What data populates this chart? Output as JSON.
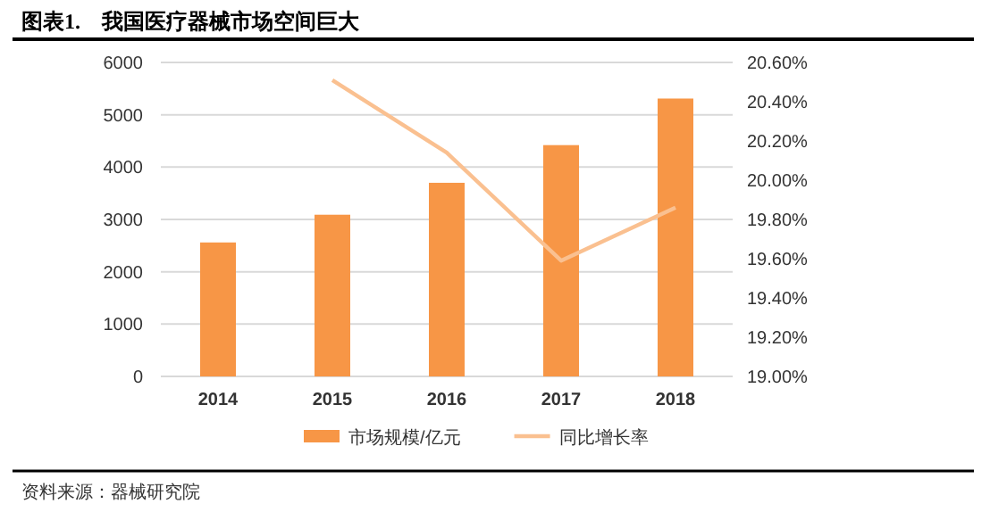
{
  "chart_data": {
    "type": "bar",
    "title": "图表1.　我国医疗器械市场空间巨大",
    "categories": [
      "2014",
      "2015",
      "2016",
      "2017",
      "2018"
    ],
    "series": [
      {
        "name": "市场规模/亿元",
        "color": "#f79646",
        "values": [
          2560,
          3090,
          3700,
          4420,
          5310
        ]
      },
      {
        "name": "同比增长率",
        "type": "line",
        "axis": "y2",
        "color": "#fac090",
        "values": [
          null,
          20.51,
          20.14,
          19.59,
          19.86
        ]
      }
    ],
    "ylim": [
      0,
      6000
    ],
    "yticks": [
      0,
      1000,
      2000,
      3000,
      4000,
      5000,
      6000
    ],
    "y2lim": [
      19,
      20.6
    ],
    "y2ticks": [
      {
        "value": 19,
        "label": "19.00%"
      },
      {
        "value": 19.2,
        "label": "19.20%"
      },
      {
        "value": 19.4,
        "label": "19.40%"
      },
      {
        "value": 19.6,
        "label": "19.60%"
      },
      {
        "value": 19.8,
        "label": "19.80%"
      },
      {
        "value": 20,
        "label": "20.00%"
      },
      {
        "value": 20.2,
        "label": "20.20%"
      },
      {
        "value": 20.4,
        "label": "20.40%"
      },
      {
        "value": 20.6,
        "label": "20.60%"
      }
    ],
    "grid": "y",
    "legend": "bottom",
    "annotations": [
      "资料来源：器械研究院"
    ]
  }
}
